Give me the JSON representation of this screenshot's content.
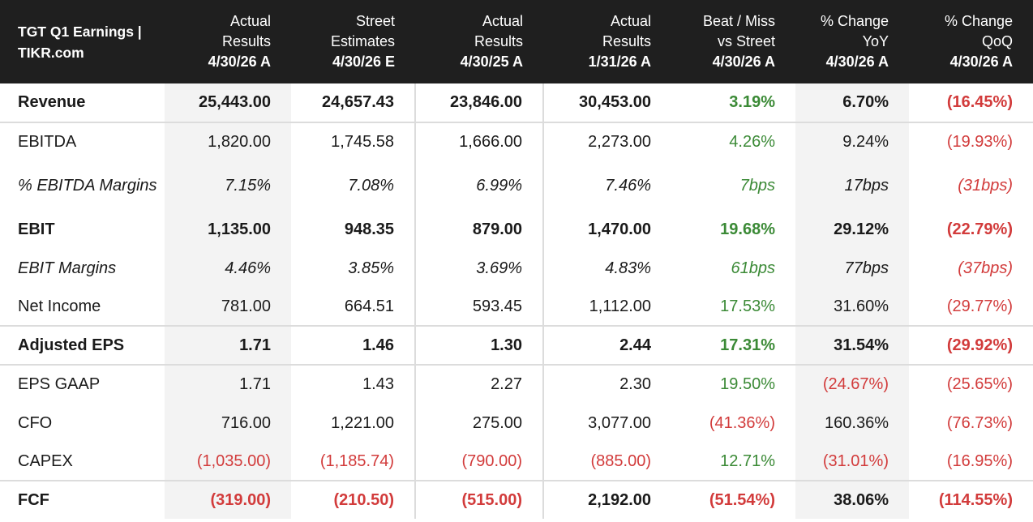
{
  "header": {
    "title": "TGT Q1 Earnings | TIKR.com",
    "columns": [
      {
        "l1": "Actual",
        "l2": "Results",
        "l3": "4/30/26 A"
      },
      {
        "l1": "Street",
        "l2": "Estimates",
        "l3": "4/30/26 E"
      },
      {
        "l1": "Actual",
        "l2": "Results",
        "l3": "4/30/25 A"
      },
      {
        "l1": "Actual",
        "l2": "Results",
        "l3": "1/31/26 A"
      },
      {
        "l1": "Beat / Miss",
        "l2": "vs Street",
        "l3": "4/30/26 A"
      },
      {
        "l1": "% Change",
        "l2": "YoY",
        "l3": "4/30/26 A"
      },
      {
        "l1": "% Change",
        "l2": "QoQ",
        "l3": "4/30/26 A"
      }
    ]
  },
  "colors": {
    "positive": "#3b8a36",
    "negative": "#d23b3b",
    "header_bg": "#1f1f1f",
    "shade": "#f3f3f3"
  },
  "rows": [
    {
      "label": "Revenue",
      "cells": [
        "25,443.00",
        "24,657.43",
        "23,846.00",
        "30,453.00",
        "3.19%",
        "6.70%",
        "(16.45%)"
      ],
      "tones": [
        "neu",
        "neu",
        "neu",
        "neu",
        "pos",
        "neu",
        "neg"
      ]
    },
    {
      "label": "EBITDA",
      "cells": [
        "1,820.00",
        "1,745.58",
        "1,666.00",
        "2,273.00",
        "4.26%",
        "9.24%",
        "(19.93%)"
      ],
      "tones": [
        "neu",
        "neu",
        "neu",
        "neu",
        "pos",
        "neu",
        "neg"
      ]
    },
    {
      "label": "% EBITDA Margins",
      "cells": [
        "7.15%",
        "7.08%",
        "6.99%",
        "7.46%",
        "7bps",
        "17bps",
        "(31bps)"
      ],
      "tones": [
        "neu",
        "neu",
        "neu",
        "neu",
        "pos",
        "neu",
        "neg"
      ]
    },
    {
      "label": "EBIT",
      "cells": [
        "1,135.00",
        "948.35",
        "879.00",
        "1,470.00",
        "19.68%",
        "29.12%",
        "(22.79%)"
      ],
      "tones": [
        "neu",
        "neu",
        "neu",
        "neu",
        "pos",
        "neu",
        "neg"
      ]
    },
    {
      "label": "EBIT Margins",
      "cells": [
        "4.46%",
        "3.85%",
        "3.69%",
        "4.83%",
        "61bps",
        "77bps",
        "(37bps)"
      ],
      "tones": [
        "neu",
        "neu",
        "neu",
        "neu",
        "pos",
        "neu",
        "neg"
      ]
    },
    {
      "label": "Net Income",
      "cells": [
        "781.00",
        "664.51",
        "593.45",
        "1,112.00",
        "17.53%",
        "31.60%",
        "(29.77%)"
      ],
      "tones": [
        "neu",
        "neu",
        "neu",
        "neu",
        "pos",
        "neu",
        "neg"
      ]
    },
    {
      "label": "Adjusted EPS",
      "cells": [
        "1.71",
        "1.46",
        "1.30",
        "2.44",
        "17.31%",
        "31.54%",
        "(29.92%)"
      ],
      "tones": [
        "neu",
        "neu",
        "neu",
        "neu",
        "pos",
        "neu",
        "neg"
      ]
    },
    {
      "label": "EPS GAAP",
      "cells": [
        "1.71",
        "1.43",
        "2.27",
        "2.30",
        "19.50%",
        "(24.67%)",
        "(25.65%)"
      ],
      "tones": [
        "neu",
        "neu",
        "neu",
        "neu",
        "pos",
        "neg",
        "neg"
      ]
    },
    {
      "label": "CFO",
      "cells": [
        "716.00",
        "1,221.00",
        "275.00",
        "3,077.00",
        "(41.36%)",
        "160.36%",
        "(76.73%)"
      ],
      "tones": [
        "neu",
        "neu",
        "neu",
        "neu",
        "neg",
        "neu",
        "neg"
      ]
    },
    {
      "label": "CAPEX",
      "cells": [
        "(1,035.00)",
        "(1,185.74)",
        "(790.00)",
        "(885.00)",
        "12.71%",
        "(31.01%)",
        "(16.95%)"
      ],
      "tones": [
        "neg",
        "neg",
        "neg",
        "neg",
        "pos",
        "neg",
        "neg"
      ]
    },
    {
      "label": "FCF",
      "cells": [
        "(319.00)",
        "(210.50)",
        "(515.00)",
        "2,192.00",
        "(51.54%)",
        "38.06%",
        "(114.55%)"
      ],
      "tones": [
        "neg",
        "neg",
        "neg",
        "neu",
        "neg",
        "neu",
        "neg"
      ]
    }
  ]
}
